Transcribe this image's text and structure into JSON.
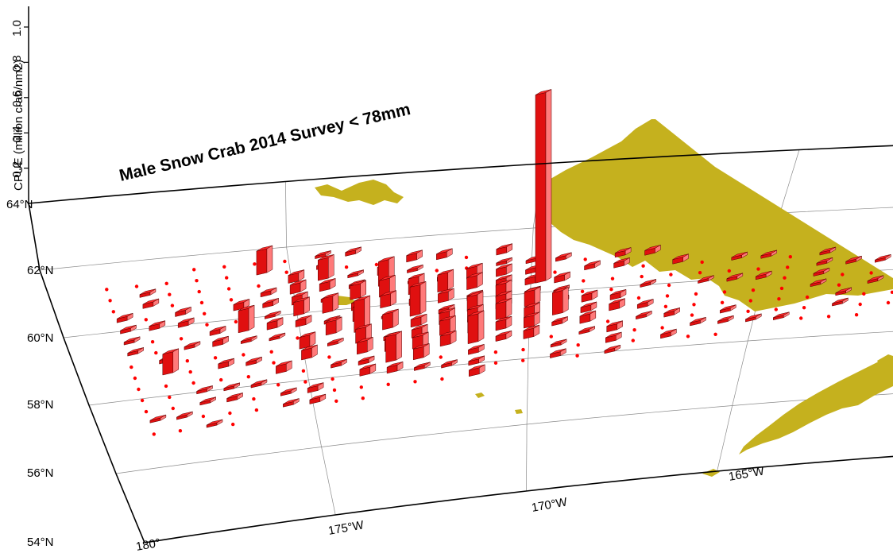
{
  "title": "Male Snow Crab 2014 Survey < 78mm",
  "z_axis": {
    "label": "CPUE (million crab/nm2)",
    "ticks": [
      "0.2",
      "0.4",
      "0.6",
      "0.8",
      "1.0"
    ]
  },
  "lat_labels": [
    "54°N",
    "56°N",
    "58°N",
    "60°N",
    "62°N",
    "64°N"
  ],
  "lon_labels": [
    "180°",
    "175°W",
    "170°W",
    "165°W"
  ],
  "colors": {
    "land": "#c5b11e",
    "bar_top": "#ff2a2a",
    "bar_side": "#ff7a7a",
    "bar_front": "#e01010",
    "zero_station": "#ff0000",
    "graticule": "#8a8a8a"
  },
  "chart_data": {
    "type": "3d-bar-map",
    "title": "Male Snow Crab 2014 Survey < 78mm",
    "zlabel": "CPUE (million crab/nm2)",
    "zlim": [
      0,
      1.1
    ],
    "lon_range": [
      -180,
      -160
    ],
    "lat_range": [
      54,
      64
    ],
    "peak_station": {
      "lon": -169.9,
      "lat": 60.3,
      "cpue": 0.79
    },
    "notes": "Survey stations on a ~20 nm grid; bars show positive CPUE, dots mark zero-catch stations."
  }
}
